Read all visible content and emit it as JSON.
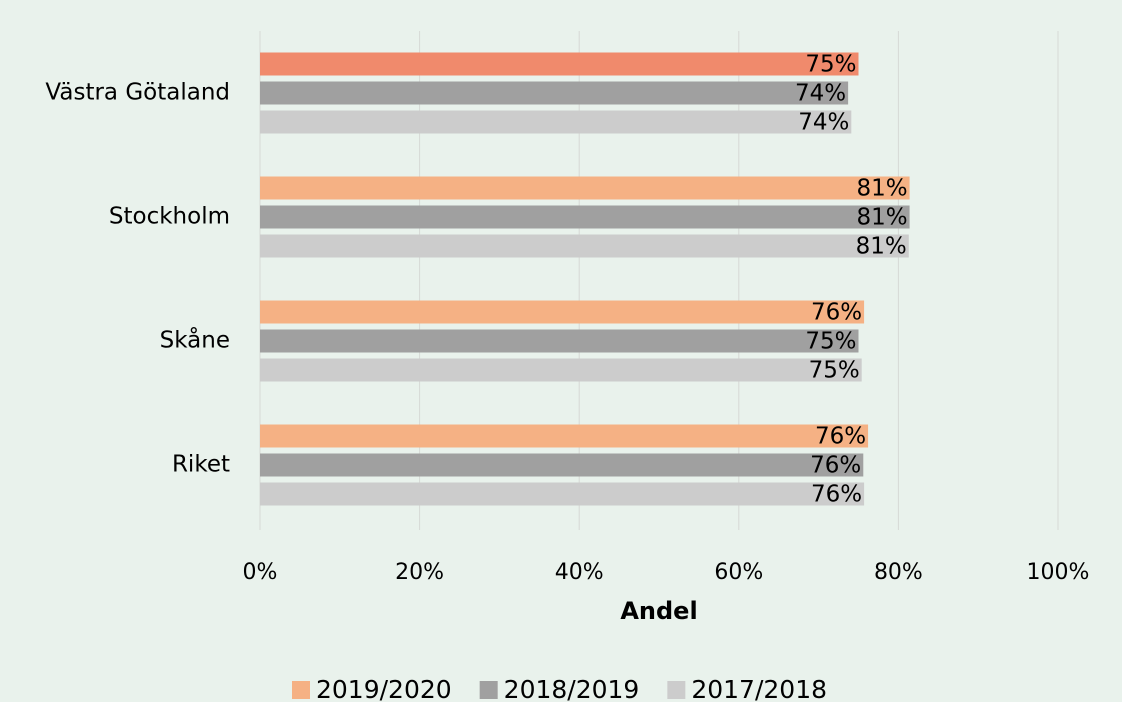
{
  "chart_data": {
    "type": "hbar",
    "xlabel": "Andel",
    "categories": [
      "Västra Götaland",
      "Stockholm",
      "Skåne",
      "Riket"
    ],
    "series": [
      {
        "name": "2019/2020",
        "color": "#f5b184",
        "colors": [
          "#f08a6c",
          "#f5b184",
          "#f5b184",
          "#f5b184"
        ],
        "values": [
          75,
          81.4,
          75.7,
          76.2
        ],
        "value_labels": [
          "75%",
          "81%",
          "76%",
          "76%"
        ]
      },
      {
        "name": "2018/2019",
        "color": "#a0a0a0",
        "values": [
          73.7,
          81.4,
          75,
          75.6
        ],
        "value_labels": [
          "74%",
          "81%",
          "75%",
          "76%"
        ]
      },
      {
        "name": "2017/2018",
        "color": "#cccccc",
        "values": [
          74.1,
          81.3,
          75.4,
          75.7
        ],
        "value_labels": [
          "74%",
          "81%",
          "75%",
          "76%"
        ]
      }
    ],
    "xlim": [
      0,
      100
    ],
    "xticks": [
      {
        "value": 0,
        "label": "0%"
      },
      {
        "value": 20,
        "label": "20%"
      },
      {
        "value": 40,
        "label": "40%"
      },
      {
        "value": 60,
        "label": "60%"
      },
      {
        "value": 80,
        "label": "80%"
      },
      {
        "value": 100,
        "label": "100%"
      }
    ],
    "grid": true,
    "legend": "bottom"
  }
}
